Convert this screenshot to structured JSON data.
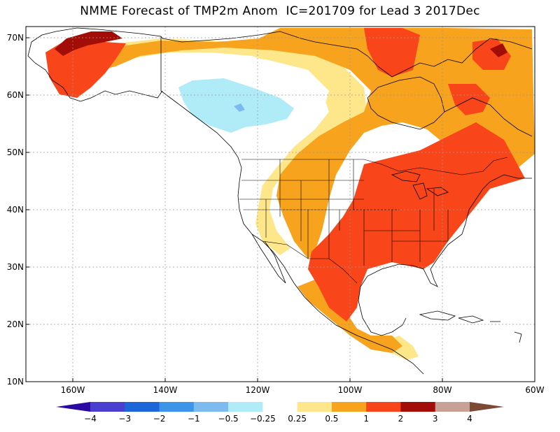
{
  "title": "NMME Forecast of TMP2m Anom  IC=201709 for Lead 3 2017Dec",
  "map": {
    "lat_labels": [
      "70N",
      "60N",
      "50N",
      "40N",
      "30N",
      "20N",
      "10N"
    ],
    "lon_labels": [
      "160W",
      "140W",
      "120W",
      "100W",
      "80W",
      "60W"
    ]
  },
  "colorbar": {
    "labels": [
      "−4",
      "−3",
      "−2",
      "−1",
      "−0.5",
      "−0.25",
      "0.25",
      "0.5",
      "1",
      "2",
      "3",
      "4"
    ],
    "colors": [
      "#2a0aa0",
      "#4b3fd0",
      "#1d66d8",
      "#3d95ea",
      "#7dbaf0",
      "#b0ecf8",
      "#ffffff",
      "#fde78a",
      "#f7a31e",
      "#f8451a",
      "#a30d07",
      "#c8a196",
      "#7d4a36"
    ]
  }
}
